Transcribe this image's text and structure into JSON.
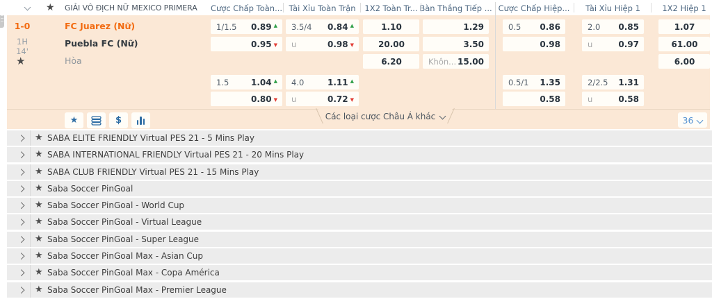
{
  "panel": {
    "title": "GIẢI VÔ ĐỊCH NỮ MEXICO PRIMERA",
    "columns": [
      "Cược Chấp Toàn...",
      "Tài Xỉu Toàn Trận",
      "1X2 Toàn Tr...",
      "Bàn Thắng Tiếp ...",
      "Cược Chấp Hiệp...",
      "Tài Xỉu Hiệp 1",
      "1X2 Hiệp 1"
    ],
    "match": {
      "score": "1-0",
      "period": "1H",
      "clock": "14'",
      "home_team": "FC Juarez (Nữ)",
      "away_team": "Puebla FC (Nữ)",
      "draw_label": "Hòa"
    },
    "odds_blocks": [
      {
        "rows": [
          [
            {
              "col": 0,
              "hdp": "1/1.5",
              "odds": "0.89",
              "trend": "up"
            },
            {
              "col": 1,
              "hdp": "3.5/4",
              "odds": "0.84",
              "trend": "up"
            },
            {
              "col": 2,
              "odds": "1.10",
              "align": "center"
            },
            {
              "col": 3,
              "odds": "1.29"
            },
            {
              "col": 4,
              "hdp": "0.5",
              "odds": "0.86"
            },
            {
              "col": 5,
              "hdp": "2.0",
              "odds": "0.85"
            },
            {
              "col": 6,
              "odds": "1.07",
              "align": "center"
            }
          ],
          [
            {
              "col": 0,
              "odds": "0.95",
              "trend": "down"
            },
            {
              "col": 1,
              "hdp": "u",
              "muted": true,
              "odds": "0.98",
              "trend": "down"
            },
            {
              "col": 2,
              "odds": "20.00",
              "align": "center"
            },
            {
              "col": 3,
              "odds": "3.50"
            },
            {
              "col": 4,
              "odds": "0.98"
            },
            {
              "col": 5,
              "hdp": "u",
              "muted": true,
              "odds": "0.97"
            },
            {
              "col": 6,
              "odds": "61.00",
              "align": "center"
            }
          ],
          [
            {
              "col": 2,
              "odds": "6.20",
              "align": "center"
            },
            {
              "col": 3,
              "hdp": "Khôn...",
              "muted": true,
              "odds": "15.00"
            },
            {
              "col": 6,
              "odds": "6.00",
              "align": "center"
            }
          ]
        ]
      },
      {
        "rows": [
          [
            {
              "col": 0,
              "hdp": "1.5",
              "odds": "1.04",
              "trend": "up"
            },
            {
              "col": 1,
              "hdp": "4.0",
              "odds": "1.11",
              "trend": "up"
            },
            {
              "col": 4,
              "hdp": "0.5/1",
              "odds": "1.35"
            },
            {
              "col": 5,
              "hdp": "2/2.5",
              "odds": "1.31"
            }
          ],
          [
            {
              "col": 0,
              "odds": "0.80",
              "trend": "down"
            },
            {
              "col": 1,
              "hdp": "u",
              "muted": true,
              "odds": "0.72",
              "trend": "down"
            },
            {
              "col": 4,
              "odds": "0.58"
            },
            {
              "col": 5,
              "hdp": "u",
              "muted": true,
              "odds": "0.58"
            }
          ]
        ]
      }
    ],
    "footer": {
      "icons": {
        "favorite": "★",
        "dollar": "$"
      },
      "asian_bets_label": "Các loại cược Châu Á khác",
      "market_count": "36"
    }
  },
  "icons": {
    "header_favorite_star": "★",
    "match_favorite_star": "★",
    "league_row_star": "★"
  },
  "colors": {
    "accent_orange": "#f26b11",
    "panel_peach": "#fbe8d6",
    "odds_up_green": "#31a04a",
    "odds_down_red": "#e23d35",
    "icon_blue": "#2e6da4"
  },
  "leagues": [
    "SABA ELITE FRIENDLY Virtual PES 21 - 5 Mins Play",
    "SABA INTERNATIONAL FRIENDLY Virtual PES 21 - 20 Mins Play",
    "SABA CLUB FRIENDLY Virtual PES 21 - 15 Mins Play",
    "Saba Soccer PinGoal",
    "Saba Soccer PinGoal - World Cup",
    "Saba Soccer PinGoal - Virtual League",
    "Saba Soccer PinGoal - Super League",
    "Saba Soccer PinGoal Max - Asian Cup",
    "Saba Soccer PinGoal Max - Copa América",
    "Saba Soccer PinGoal Max - Premier League"
  ]
}
